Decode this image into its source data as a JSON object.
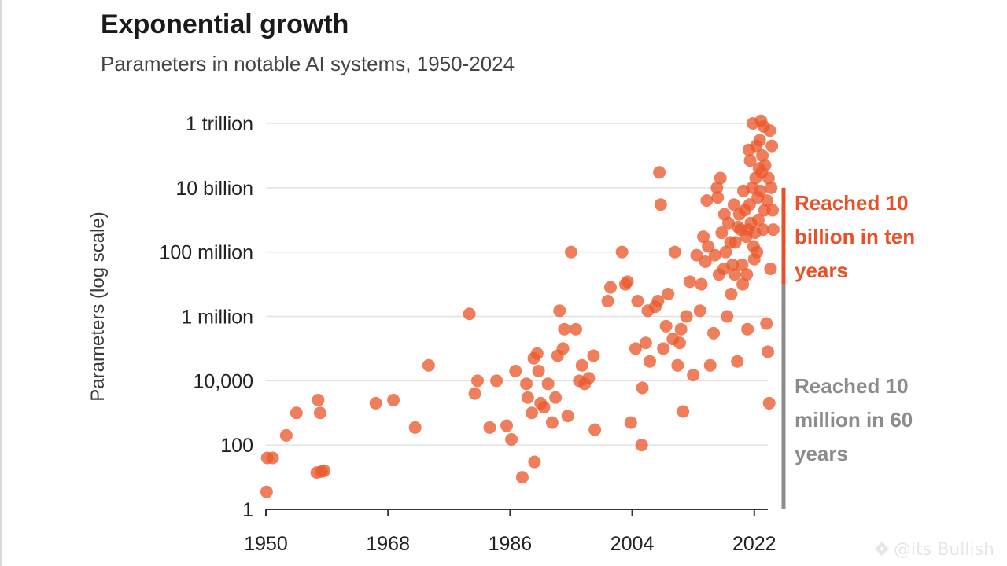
{
  "chart_data": {
    "type": "scatter",
    "title": "Exponential growth",
    "subtitle": "Parameters in notable AI systems, 1950-2024",
    "ylabel": "Parameters (log scale)",
    "xlabel": "",
    "y_scale": "log",
    "xlim": [
      1950,
      2024
    ],
    "ylim": [
      1,
      1000000000000
    ],
    "grid": true,
    "point_color": "#ea5a2e",
    "x_ticks": [
      {
        "value": 1950,
        "label": "1950"
      },
      {
        "value": 1968,
        "label": "1968"
      },
      {
        "value": 1986,
        "label": "1986"
      },
      {
        "value": 2004,
        "label": "2004"
      },
      {
        "value": 2022,
        "label": "2022"
      }
    ],
    "y_ticks": [
      {
        "value": 1,
        "label": "1"
      },
      {
        "value": 100,
        "label": "100"
      },
      {
        "value": 10000,
        "label": "10,000"
      },
      {
        "value": 1000000,
        "label": "1 million"
      },
      {
        "value": 100000000,
        "label": "100 million"
      },
      {
        "value": 10000000000,
        "label": "10 billion"
      },
      {
        "value": 1000000000000,
        "label": "1 trillion"
      }
    ],
    "annotations": [
      {
        "text": [
          "Reached 10",
          "billion in ten",
          "years"
        ],
        "color": "#e8502a",
        "range_years": [
          2014,
          2024
        ],
        "range_values": [
          10000000,
          10000000000
        ]
      },
      {
        "text": [
          "Reached 10",
          "million in 60",
          "years"
        ],
        "color": "#8c8c8c",
        "range_years": [
          1950,
          2010
        ],
        "range_values": [
          1,
          10000000
        ]
      }
    ],
    "points": [
      [
        1950.2,
        40
      ],
      [
        1951.0,
        40
      ],
      [
        1950.1,
        3.5
      ],
      [
        1953.0,
        200
      ],
      [
        1954.5,
        1000
      ],
      [
        1957.7,
        2500
      ],
      [
        1958.0,
        1000
      ],
      [
        1957.5,
        14
      ],
      [
        1958.2,
        15
      ],
      [
        1958.6,
        16
      ],
      [
        1966.2,
        2000
      ],
      [
        1968.8,
        2500
      ],
      [
        1972.0,
        350
      ],
      [
        1974.0,
        30000
      ],
      [
        1980.0,
        1200000
      ],
      [
        1981.2,
        10000
      ],
      [
        1980.8,
        4000
      ],
      [
        1983.0,
        350
      ],
      [
        1984.0,
        10000
      ],
      [
        1985.5,
        400
      ],
      [
        1986.2,
        150
      ],
      [
        1986.8,
        20000
      ],
      [
        1987.8,
        10
      ],
      [
        1988.4,
        8000
      ],
      [
        1988.6,
        3000
      ],
      [
        1989.2,
        1000
      ],
      [
        1989.5,
        50000
      ],
      [
        1990.0,
        70000
      ],
      [
        1990.2,
        20000
      ],
      [
        1990.5,
        2000
      ],
      [
        1989.6,
        30
      ],
      [
        1991.0,
        1500
      ],
      [
        1991.6,
        8000
      ],
      [
        1992.2,
        500
      ],
      [
        1992.7,
        3000
      ],
      [
        1993.0,
        60000
      ],
      [
        1993.3,
        1500000
      ],
      [
        1993.8,
        100000
      ],
      [
        1994.0,
        400000
      ],
      [
        1994.5,
        800
      ],
      [
        1995.7,
        400000
      ],
      [
        1996.2,
        10000
      ],
      [
        1996.6,
        30000
      ],
      [
        1997.0,
        8000
      ],
      [
        1997.6,
        12000
      ],
      [
        1998.3,
        60000
      ],
      [
        1995.0,
        100000000
      ],
      [
        1998.5,
        300
      ],
      [
        2000.4,
        3000000
      ],
      [
        2000.8,
        8000000
      ],
      [
        2002.5,
        100000000
      ],
      [
        2003.0,
        10000000
      ],
      [
        2003.3,
        12000000
      ],
      [
        2003.8,
        500
      ],
      [
        2004.5,
        100000
      ],
      [
        2004.8,
        3000000
      ],
      [
        2005.4,
        100
      ],
      [
        2005.5,
        6000
      ],
      [
        2006.0,
        150000
      ],
      [
        2006.3,
        1500000
      ],
      [
        2006.6,
        40000
      ],
      [
        2007.4,
        2000000
      ],
      [
        2007.8,
        3000000
      ],
      [
        2008.0,
        30000000000
      ],
      [
        2008.2,
        3000000000
      ],
      [
        2008.6,
        100000
      ],
      [
        2009.0,
        500000
      ],
      [
        2009.3,
        5000000
      ],
      [
        2010.0,
        200000
      ],
      [
        2010.3,
        100000000
      ],
      [
        2010.7,
        30000
      ],
      [
        2011.0,
        150000
      ],
      [
        2011.2,
        400000
      ],
      [
        2011.5,
        1100
      ],
      [
        2012.0,
        1000000
      ],
      [
        2012.5,
        12000000
      ],
      [
        2013.0,
        15000
      ],
      [
        2013.5,
        80000000
      ],
      [
        2014.0,
        1500000
      ],
      [
        2014.5,
        300000000
      ],
      [
        2015.0,
        4000000000
      ],
      [
        2015.5,
        30000
      ],
      [
        2016.0,
        300000
      ],
      [
        2016.5,
        10000000000
      ],
      [
        2017.0,
        20000000000
      ],
      [
        2017.5,
        30000000
      ],
      [
        2018.0,
        1000000
      ],
      [
        2018.5,
        200000000
      ],
      [
        2019.0,
        3000000000
      ],
      [
        2019.5,
        40000
      ],
      [
        2020.0,
        500000000
      ],
      [
        2020.3,
        10000000
      ],
      [
        2020.6,
        2000000000
      ],
      [
        2021.0,
        400000
      ],
      [
        2021.2,
        150000000000
      ],
      [
        2021.5,
        800000000
      ],
      [
        2021.8,
        1000000000000
      ],
      [
        2022.0,
        60000000
      ],
      [
        2022.2,
        20000000000
      ],
      [
        2022.5,
        5000000000
      ],
      [
        2022.8,
        300000000000
      ],
      [
        2023.0,
        1200000000000
      ],
      [
        2023.2,
        100000000000
      ],
      [
        2023.5,
        2000000000
      ],
      [
        2023.8,
        600000
      ],
      [
        2024.0,
        80000
      ],
      [
        2024.2,
        2000
      ],
      [
        2024.4,
        30000000
      ],
      [
        2024.6,
        200000000000
      ],
      [
        2024.8,
        500000000
      ],
      [
        2014.2,
        10000000
      ],
      [
        2014.8,
        50000000
      ],
      [
        2015.2,
        150000000
      ],
      [
        2016.2,
        80000000
      ],
      [
        2016.8,
        20000000
      ],
      [
        2017.2,
        400000000
      ],
      [
        2017.8,
        100000000
      ],
      [
        2018.2,
        800000000
      ],
      [
        2018.8,
        40000000
      ],
      [
        2019.2,
        200000000
      ],
      [
        2019.8,
        1500000000
      ],
      [
        2020.2,
        40000000
      ],
      [
        2020.8,
        300000000
      ],
      [
        2021.3,
        3000000000
      ],
      [
        2021.7,
        10000000000
      ],
      [
        2022.1,
        400000000
      ],
      [
        2022.4,
        100000000
      ],
      [
        2022.6,
        1000000000
      ],
      [
        2022.9,
        8000000000
      ],
      [
        2023.1,
        30000000000
      ],
      [
        2023.3,
        500000000
      ],
      [
        2023.6,
        50000000000
      ],
      [
        2023.9,
        4000000000
      ],
      [
        2024.1,
        20000000000
      ],
      [
        2024.3,
        600000000000
      ],
      [
        2024.5,
        10000000000
      ],
      [
        2021.9,
        150000000
      ],
      [
        2020.9,
        20000000
      ],
      [
        2019.6,
        600000000
      ],
      [
        2018.6,
        5000000
      ],
      [
        2017.6,
        1500000000
      ],
      [
        2016.6,
        5000000000
      ],
      [
        2021.4,
        70000000000
      ],
      [
        2022.3,
        200000000000
      ],
      [
        2023.4,
        800000000000
      ],
      [
        2024.7,
        2000000000
      ],
      [
        2020.4,
        8000000000
      ],
      [
        2021.1,
        500000000
      ],
      [
        2019.1,
        20000000
      ],
      [
        2022.7,
        40000000000
      ]
    ]
  },
  "watermark": {
    "text": "@its Bullish",
    "icon": "bird-logo-icon"
  }
}
